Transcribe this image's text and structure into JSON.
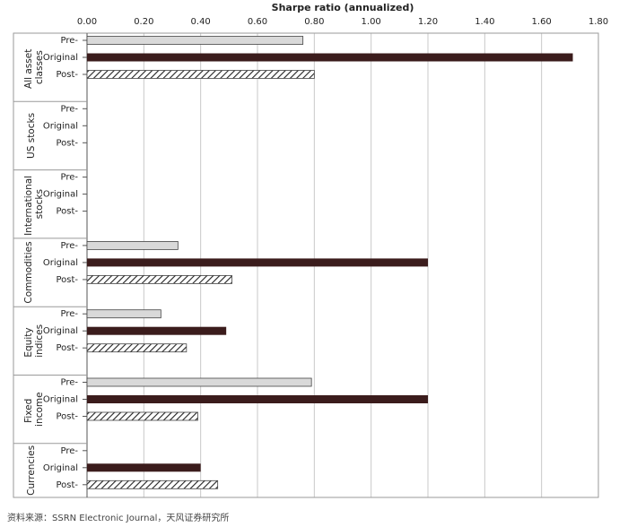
{
  "chart_data": {
    "type": "bar",
    "orientation": "horizontal",
    "title": "Sharpe ratio (annualized)",
    "categories": [
      "All asset classes",
      "US stocks",
      "International stocks",
      "Commodities",
      "Equity indices",
      "Fixed income",
      "Currencies"
    ],
    "series": [
      {
        "name": "Pre-",
        "color": "#d9d9d9",
        "values": [
          0.76,
          null,
          null,
          0.32,
          0.26,
          0.79,
          null
        ]
      },
      {
        "name": "Original",
        "color": "#3b1c1c",
        "values": [
          1.71,
          null,
          null,
          1.2,
          0.49,
          1.2,
          0.4
        ]
      },
      {
        "name": "Post-",
        "color": "hatch",
        "values": [
          0.8,
          null,
          null,
          0.51,
          0.35,
          0.39,
          0.46
        ]
      }
    ],
    "xlim": [
      0,
      1.8
    ],
    "xticks": [
      {
        "value": 0,
        "label": "0.00"
      },
      {
        "value": 0.2,
        "label": "0.20"
      },
      {
        "value": 0.4,
        "label": "0.40"
      },
      {
        "value": 0.6,
        "label": "0.60"
      },
      {
        "value": 0.8,
        "label": "0.80"
      },
      {
        "value": 1.0,
        "label": "1.00"
      },
      {
        "value": 1.2,
        "label": "1.20"
      },
      {
        "value": 1.4,
        "label": "1.40"
      },
      {
        "value": 1.6,
        "label": "1.60"
      },
      {
        "value": 1.8,
        "label": "1.80"
      }
    ],
    "grid": true,
    "source": "资料来源：SSRN Electronic Journal，天风证券研究所"
  }
}
